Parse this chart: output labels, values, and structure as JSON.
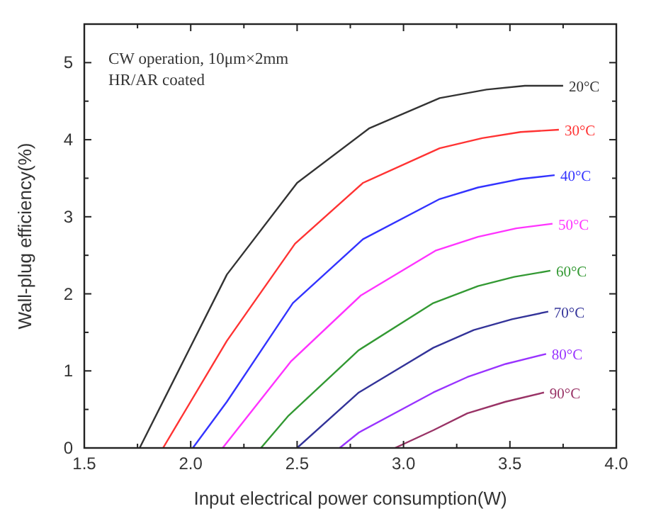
{
  "chart_data": {
    "type": "line",
    "xlabel": "Input electrical power consumption(W)",
    "ylabel": "Wall-plug efficiency(%)",
    "annotations": [
      "CW operation, 10μm×2mm",
      "HR/AR coated"
    ],
    "xlim": [
      1.5,
      4.0
    ],
    "ylim": [
      0,
      5.5
    ],
    "xticks": [
      1.5,
      {
        "value": 1.75,
        "label": null
      },
      {
        "value": 2,
        "label": "2.0"
      },
      {
        "value": 2.25,
        "label": null
      },
      2.5,
      {
        "value": 2.75,
        "label": null
      },
      {
        "value": 3,
        "label": "3.0"
      },
      {
        "value": 3.25,
        "label": null
      },
      3.5,
      {
        "value": 3.75,
        "label": null
      },
      {
        "value": 4,
        "label": "4.0"
      }
    ],
    "yticks": [
      0,
      {
        "value": 0.5,
        "label": null
      },
      1,
      {
        "value": 1.5,
        "label": null
      },
      2,
      {
        "value": 2.5,
        "label": null
      },
      3,
      {
        "value": 3.5,
        "label": null
      },
      4,
      {
        "value": 4.5,
        "label": null
      },
      5,
      {
        "value": 5.5,
        "label": null
      }
    ],
    "marker": "none",
    "line_style": "solid",
    "series": [
      {
        "name": "20°C",
        "color": "#333333",
        "x": [
          1.76,
          2.17,
          2.5,
          2.84,
          3.17,
          3.39,
          3.57,
          3.75
        ],
        "values": [
          0,
          2.25,
          3.44,
          4.15,
          4.54,
          4.65,
          4.7,
          4.7
        ]
      },
      {
        "name": "30°C",
        "color": "#ff3333",
        "x": [
          1.87,
          2.17,
          2.49,
          2.81,
          3.17,
          3.37,
          3.55,
          3.73
        ],
        "values": [
          0,
          1.39,
          2.65,
          3.44,
          3.89,
          4.02,
          4.1,
          4.13
        ]
      },
      {
        "name": "40°C",
        "color": "#3333ff",
        "x": [
          2.01,
          2.17,
          2.48,
          2.81,
          3.17,
          3.35,
          3.55,
          3.71
        ],
        "values": [
          0,
          0.6,
          1.88,
          2.71,
          3.23,
          3.38,
          3.49,
          3.54
        ]
      },
      {
        "name": "50°C",
        "color": "#ff33ff",
        "x": [
          2.15,
          2.47,
          2.8,
          3.15,
          3.35,
          3.53,
          3.7
        ],
        "values": [
          0,
          1.12,
          1.98,
          2.56,
          2.74,
          2.85,
          2.91
        ]
      },
      {
        "name": "60°C",
        "color": "#339933",
        "x": [
          2.33,
          2.46,
          2.79,
          3.14,
          3.35,
          3.52,
          3.69
        ],
        "values": [
          0,
          0.42,
          1.27,
          1.88,
          2.1,
          2.22,
          2.3
        ]
      },
      {
        "name": "70°C",
        "color": "#333399",
        "x": [
          2.5,
          2.79,
          3.14,
          3.33,
          3.51,
          3.68
        ],
        "values": [
          0,
          0.72,
          1.3,
          1.53,
          1.67,
          1.77
        ]
      },
      {
        "name": "80°C",
        "color": "#9933ff",
        "x": [
          2.7,
          2.79,
          3.14,
          3.3,
          3.48,
          3.67
        ],
        "values": [
          0,
          0.2,
          0.72,
          0.92,
          1.09,
          1.22
        ]
      },
      {
        "name": "90°C",
        "color": "#993366",
        "x": [
          2.96,
          3.14,
          3.3,
          3.48,
          3.66
        ],
        "values": [
          0,
          0.23,
          0.45,
          0.6,
          0.72
        ]
      }
    ]
  }
}
